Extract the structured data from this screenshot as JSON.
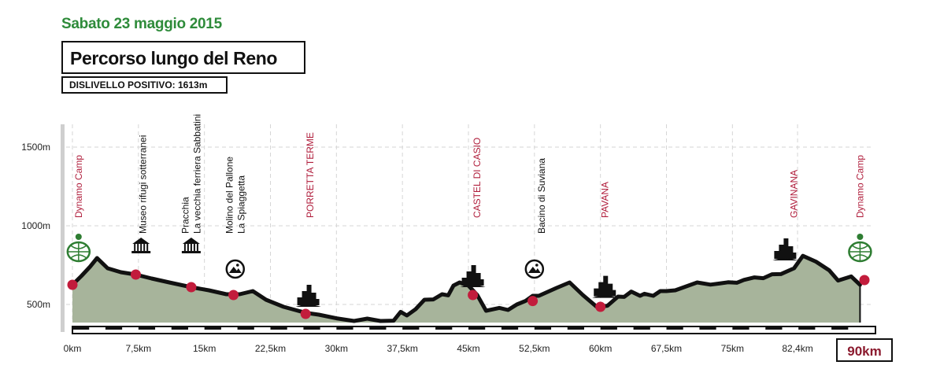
{
  "header": {
    "date": "Sabato 23 maggio 2015",
    "title": "Percorso lungo del Reno",
    "elevation_gain_label": "DISLIVELLO POSITIVO: 1613m"
  },
  "colors": {
    "date_green": "#2e8b3a",
    "profile_fill": "#a7b49b",
    "profile_line": "#111111",
    "checkpoint_red": "#c21c3c",
    "highlight_label": "#b01e3c",
    "axis_gray": "#cfcfcf"
  },
  "chart_data": {
    "type": "area",
    "title": "Percorso lungo del Reno",
    "xlabel": "",
    "ylabel": "",
    "grid": true,
    "xlim": [
      0,
      90
    ],
    "ylim": [
      380,
      1650
    ],
    "x_ticks": [
      {
        "value": 0,
        "label": "0km"
      },
      {
        "value": 7.5,
        "label": "7,5km"
      },
      {
        "value": 15,
        "label": "15km"
      },
      {
        "value": 22.5,
        "label": "22,5km"
      },
      {
        "value": 30,
        "label": "30km"
      },
      {
        "value": 37.5,
        "label": "37,5km"
      },
      {
        "value": 45,
        "label": "45km"
      },
      {
        "value": 52.5,
        "label": "52,5km"
      },
      {
        "value": 60,
        "label": "60km"
      },
      {
        "value": 67.5,
        "label": "67,5km"
      },
      {
        "value": 75,
        "label": "75km"
      },
      {
        "value": 82.4,
        "label": "82,4km"
      }
    ],
    "end_label": "90km",
    "y_ticks": [
      {
        "value": 500,
        "label": "500m"
      },
      {
        "value": 1000,
        "label": "1000m"
      },
      {
        "value": 1500,
        "label": "1500m"
      }
    ],
    "series": [
      {
        "x": [
          0,
          1.0,
          2.0,
          2.8,
          4.0,
          5.5,
          7.2,
          9.0,
          11.0,
          13.5,
          15.5,
          17.5,
          19.0,
          20.5,
          22.0,
          24.0,
          26.5,
          28.0,
          30.0,
          32.0,
          33.5,
          35.0,
          36.5,
          37.3,
          38.0,
          39.0,
          40.0,
          41.0,
          42.0,
          42.7,
          43.3,
          44.0,
          45.0,
          46.0,
          47.0,
          48.5,
          49.5,
          50.5,
          51.5,
          52.3,
          53.0,
          55.0,
          56.5,
          58.0,
          59.6,
          60.8,
          62.0,
          62.7,
          63.5,
          64.5,
          65.0,
          66.0,
          66.8,
          67.5,
          68.5,
          69.5,
          71.0,
          72.5,
          73.5,
          74.5,
          75.5,
          76.3,
          77.5,
          78.5,
          79.5,
          80.5,
          82.0,
          83.0,
          84.5,
          86.0,
          87.0,
          88.5,
          89.5
        ],
        "y": [
          625,
          680,
          740,
          795,
          730,
          705,
          690,
          665,
          640,
          610,
          590,
          565,
          565,
          585,
          530,
          485,
          447,
          435,
          412,
          395,
          410,
          395,
          397,
          453,
          430,
          470,
          530,
          532,
          565,
          558,
          620,
          640,
          620,
          560,
          460,
          478,
          465,
          500,
          523,
          555,
          555,
          605,
          640,
          560,
          484,
          492,
          550,
          548,
          582,
          555,
          568,
          555,
          585,
          585,
          590,
          610,
          640,
          626,
          633,
          641,
          638,
          656,
          672,
          667,
          692,
          693,
          730,
          809,
          772,
          717,
          652,
          678,
          625
        ]
      }
    ],
    "checkpoints": [
      {
        "x": 0,
        "y": 625
      },
      {
        "x": 7.2,
        "y": 690
      },
      {
        "x": 13.5,
        "y": 610
      },
      {
        "x": 18.3,
        "y": 560
      },
      {
        "x": 26.5,
        "y": 440
      },
      {
        "x": 45.5,
        "y": 560
      },
      {
        "x": 52.3,
        "y": 522
      },
      {
        "x": 60.0,
        "y": 485
      },
      {
        "x": 90.0,
        "y": 655
      }
    ],
    "place_labels": [
      {
        "x": 0.7,
        "lines": [
          "Dynamo Camp"
        ],
        "highlight": true
      },
      {
        "x": 8.0,
        "lines": [
          "Museo rifugi sotterranei"
        ],
        "highlight": false
      },
      {
        "x": 14.2,
        "lines": [
          "Pracchia",
          "La vecchia ferriera Sabbatini"
        ],
        "highlight": false
      },
      {
        "x": 19.2,
        "lines": [
          "Molino del Pallone",
          "La Spiaggetta"
        ],
        "highlight": false
      },
      {
        "x": 27.0,
        "lines": [
          "PORRETTA TERME"
        ],
        "highlight": true
      },
      {
        "x": 46.0,
        "lines": [
          "CASTEL DI CASIO"
        ],
        "highlight": true
      },
      {
        "x": 53.3,
        "lines": [
          "Bacino di Suviana"
        ],
        "highlight": false
      },
      {
        "x": 60.5,
        "lines": [
          "PAVANA"
        ],
        "highlight": true
      },
      {
        "x": 82.0,
        "lines": [
          "GAVINANA"
        ],
        "highlight": true
      },
      {
        "x": 89.5,
        "lines": [
          "Dynamo Camp"
        ],
        "highlight": true
      }
    ],
    "icons": [
      {
        "name": "dynamo-camp-logo-icon",
        "x": 0.7,
        "kind": "logo"
      },
      {
        "name": "museum-icon",
        "x": 7.8,
        "kind": "museum"
      },
      {
        "name": "museum-icon",
        "x": 13.5,
        "kind": "museum"
      },
      {
        "name": "landscape-icon",
        "x": 18.5,
        "kind": "landscape"
      },
      {
        "name": "town-icon",
        "x": 26.8,
        "kind": "town"
      },
      {
        "name": "town-icon",
        "x": 45.5,
        "kind": "town"
      },
      {
        "name": "landscape-icon",
        "x": 52.5,
        "kind": "landscape"
      },
      {
        "name": "town-icon",
        "x": 60.5,
        "kind": "town"
      },
      {
        "name": "town-icon",
        "x": 81.0,
        "kind": "town"
      },
      {
        "name": "dynamo-camp-logo-icon",
        "x": 89.5,
        "kind": "logo"
      }
    ]
  }
}
